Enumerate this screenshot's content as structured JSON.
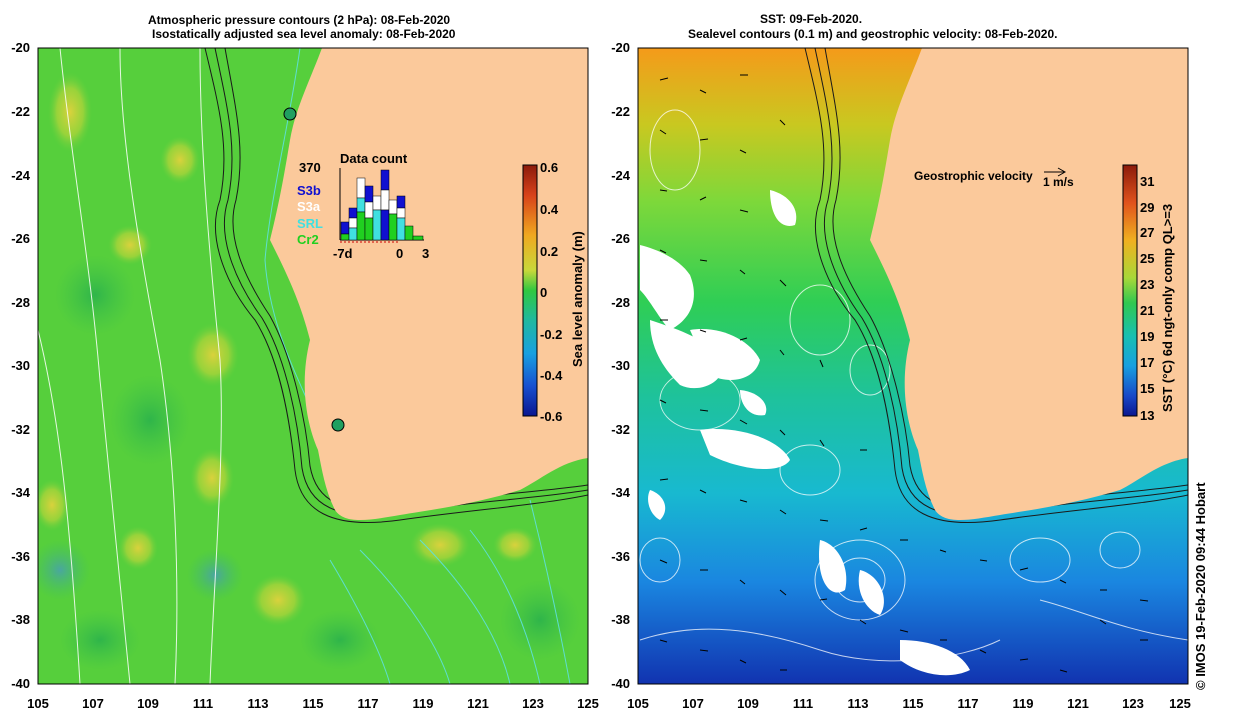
{
  "left_panel": {
    "title_line1": "Atmospheric pressure contours (2 hPa): 08-Feb-2020",
    "title_line2": "Isostatically adjusted sea level anomaly: 08-Feb-2020",
    "y_ticks": [
      "-20",
      "-22",
      "-24",
      "-26",
      "-28",
      "-30",
      "-32",
      "-34",
      "-36",
      "-38",
      "-40"
    ],
    "x_ticks": [
      "105",
      "107",
      "109",
      "111",
      "113",
      "115",
      "117",
      "119",
      "121",
      "123",
      "125"
    ],
    "colorbar": {
      "label": "Sea level anomaly (m)",
      "ticks": [
        "0.6",
        "0.4",
        "0.2",
        "0",
        "-0.2",
        "-0.4",
        "-0.6"
      ]
    },
    "data_count": {
      "title": "Data count",
      "max_label": "370",
      "x_labels": [
        "-7d",
        "0",
        "3"
      ],
      "legend": [
        {
          "label": "S3b",
          "color": "#1010d0"
        },
        {
          "label": "S3a",
          "color": "#ffffff"
        },
        {
          "label": "SRL",
          "color": "#40e0e0"
        },
        {
          "label": "Cr2",
          "color": "#20d020"
        }
      ]
    }
  },
  "right_panel": {
    "title_line1": "SST: 09-Feb-2020.",
    "title_line2": "Sealevel contours (0.1 m) and geostrophic velocity: 08-Feb-2020.",
    "y_ticks": [
      "-20",
      "-22",
      "-24",
      "-26",
      "-28",
      "-30",
      "-32",
      "-34",
      "-36",
      "-38",
      "-40"
    ],
    "x_ticks": [
      "105",
      "107",
      "109",
      "111",
      "113",
      "115",
      "117",
      "119",
      "121",
      "123",
      "125"
    ],
    "velocity_label": "Geostrophic velocity",
    "velocity_scale": "1 m/s",
    "colorbar": {
      "label": "SST (°C) 6d ngt-only comp QL>=3",
      "ticks": [
        "31",
        "29",
        "27",
        "25",
        "23",
        "21",
        "19",
        "17",
        "15",
        "13"
      ]
    }
  },
  "credit": "© IMOS 19-Feb-2020 09:44 Hobart",
  "colors": {
    "land": "#fbc99b",
    "sla_green": "#4fcf3a",
    "sst_mid": "#22c96a"
  }
}
